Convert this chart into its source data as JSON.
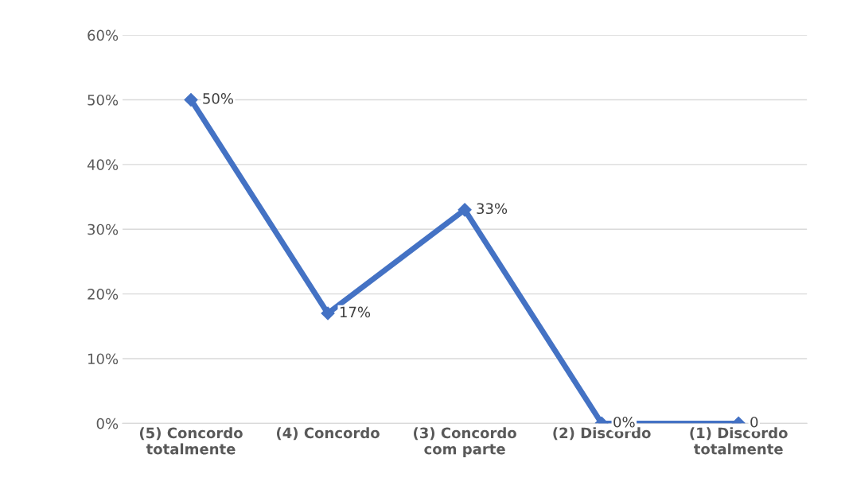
{
  "chart_data": {
    "type": "line",
    "categories": [
      "(5) Concordo\ntotalmente",
      "(4) Concordo",
      "(3) Concordo\ncom parte",
      "(2) Discordo",
      "(1) Discordo\ntotalmente"
    ],
    "values": [
      50,
      17,
      33,
      0,
      0
    ],
    "value_labels": [
      "50%",
      "17%",
      "33%",
      "0%",
      "0"
    ],
    "color": "#4472c4",
    "marker": "diamond",
    "line_style": "solid",
    "ylim": [
      0,
      60
    ],
    "yticks": [
      {
        "value": 0,
        "label": "0%"
      },
      {
        "value": 10,
        "label": "10%"
      },
      {
        "value": 20,
        "label": "20%"
      },
      {
        "value": 30,
        "label": "30%"
      },
      {
        "value": 40,
        "label": "40%"
      },
      {
        "value": 50,
        "label": "50%"
      },
      {
        "value": 60,
        "label": "60%"
      }
    ],
    "grid": "y",
    "legend": false
  }
}
